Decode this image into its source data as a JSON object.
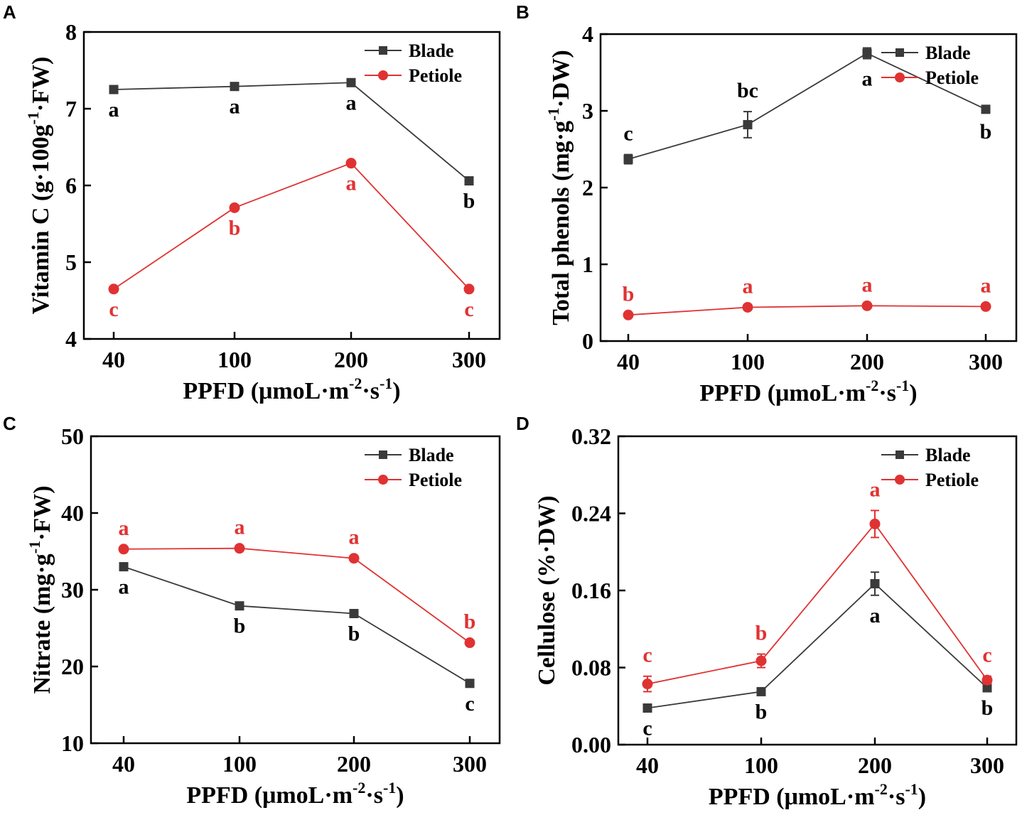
{
  "figure": {
    "colors": {
      "blade": "#3a3a3a",
      "petiole": "#e03232",
      "axis": "#000000"
    }
  },
  "chart_data": [
    {
      "id": "A",
      "panel_label": "A",
      "type": "line",
      "categories": [
        "40",
        "100",
        "200",
        "300"
      ],
      "xlabel": "PPFD (μmoL·m<sup>-2</sup>·s<sup>-1</sup>)",
      "ylabel": "Vitamin C (g·100g<sup>-1</sup>·FW)",
      "ylim": [
        4,
        8
      ],
      "yticks": [
        "4",
        "5",
        "6",
        "7",
        "8"
      ],
      "legend": [
        "Blade",
        "Petiole"
      ],
      "legend_position": "top-right",
      "series": [
        {
          "name": "Blade",
          "values": [
            7.25,
            7.29,
            7.34,
            6.06
          ],
          "errors": [
            0,
            0,
            0,
            0
          ],
          "letters": [
            "a",
            "a",
            "a",
            "b"
          ],
          "letter_pos": [
            "below",
            "below",
            "below",
            "below"
          ]
        },
        {
          "name": "Petiole",
          "values": [
            4.65,
            5.71,
            6.29,
            4.65
          ],
          "errors": [
            0,
            0,
            0,
            0
          ],
          "letters": [
            "c",
            "b",
            "a",
            "c"
          ],
          "letter_pos": [
            "below",
            "below",
            "below",
            "below"
          ]
        }
      ]
    },
    {
      "id": "B",
      "panel_label": "B",
      "type": "line",
      "categories": [
        "40",
        "100",
        "200",
        "300"
      ],
      "xlabel": "PPFD (μmoL·m<sup>-2</sup>·s<sup>-1</sup>)",
      "ylabel": "Total phenols (mg·g<sup>-1</sup>·DW)",
      "ylim": [
        0,
        4
      ],
      "yticks": [
        "0",
        "1",
        "2",
        "3",
        "4"
      ],
      "legend": [
        "Blade",
        "Petiole"
      ],
      "legend_position": "top-right",
      "series": [
        {
          "name": "Blade",
          "values": [
            2.37,
            2.82,
            3.75,
            3.02
          ],
          "errors": [
            0.06,
            0.17,
            0.07,
            0.03
          ],
          "letters": [
            "c",
            "bc",
            "a",
            "b"
          ],
          "letter_pos": [
            "above",
            "above",
            "below",
            "below"
          ]
        },
        {
          "name": "Petiole",
          "values": [
            0.34,
            0.44,
            0.46,
            0.45
          ],
          "errors": [
            0,
            0,
            0,
            0
          ],
          "letters": [
            "b",
            "a",
            "a",
            "a"
          ],
          "letter_pos": [
            "above",
            "above",
            "above",
            "above"
          ]
        }
      ]
    },
    {
      "id": "C",
      "panel_label": "C",
      "type": "line",
      "categories": [
        "40",
        "100",
        "200",
        "300"
      ],
      "xlabel": "PPFD (μmoL·m<sup>-2</sup>·s<sup>-1</sup>)",
      "ylabel": "Nitrate (mg·g<sup>-1</sup>·FW)",
      "ylim": [
        10,
        50
      ],
      "yticks": [
        "10",
        "20",
        "30",
        "40",
        "50"
      ],
      "legend": [
        "Blade",
        "Petiole"
      ],
      "legend_position": "top-right",
      "series": [
        {
          "name": "Blade",
          "values": [
            33.0,
            27.9,
            26.9,
            17.8
          ],
          "errors": [
            0,
            0,
            0,
            0
          ],
          "letters": [
            "a",
            "b",
            "b",
            "c"
          ],
          "letter_pos": [
            "below",
            "below",
            "below",
            "below"
          ]
        },
        {
          "name": "Petiole",
          "values": [
            35.3,
            35.4,
            34.1,
            23.1
          ],
          "errors": [
            0,
            0,
            0,
            0
          ],
          "letters": [
            "a",
            "a",
            "a",
            "b"
          ],
          "letter_pos": [
            "above",
            "above",
            "above",
            "above"
          ]
        }
      ]
    },
    {
      "id": "D",
      "panel_label": "D",
      "type": "line",
      "categories": [
        "40",
        "100",
        "200",
        "300"
      ],
      "xlabel": "PPFD (μmoL·m<sup>-2</sup>·s<sup>-1</sup>)",
      "ylabel": "Cellulose (%·DW)",
      "ylim": [
        0,
        0.32
      ],
      "yticks": [
        "0.00",
        "0.08",
        "0.16",
        "0.24",
        "0.32"
      ],
      "legend": [
        "Blade",
        "Petiole"
      ],
      "legend_position": "top-right",
      "series": [
        {
          "name": "Blade",
          "values": [
            0.038,
            0.055,
            0.167,
            0.059
          ],
          "errors": [
            0,
            0,
            0.012,
            0
          ],
          "letters": [
            "c",
            "b",
            "a",
            "b"
          ],
          "letter_pos": [
            "below",
            "below",
            "below",
            "below"
          ]
        },
        {
          "name": "Petiole",
          "values": [
            0.063,
            0.087,
            0.229,
            0.067
          ],
          "errors": [
            0.008,
            0.007,
            0.014,
            0.004
          ],
          "letters": [
            "c",
            "b",
            "a",
            "c"
          ],
          "letter_pos": [
            "above",
            "above",
            "above",
            "above"
          ]
        }
      ]
    }
  ]
}
